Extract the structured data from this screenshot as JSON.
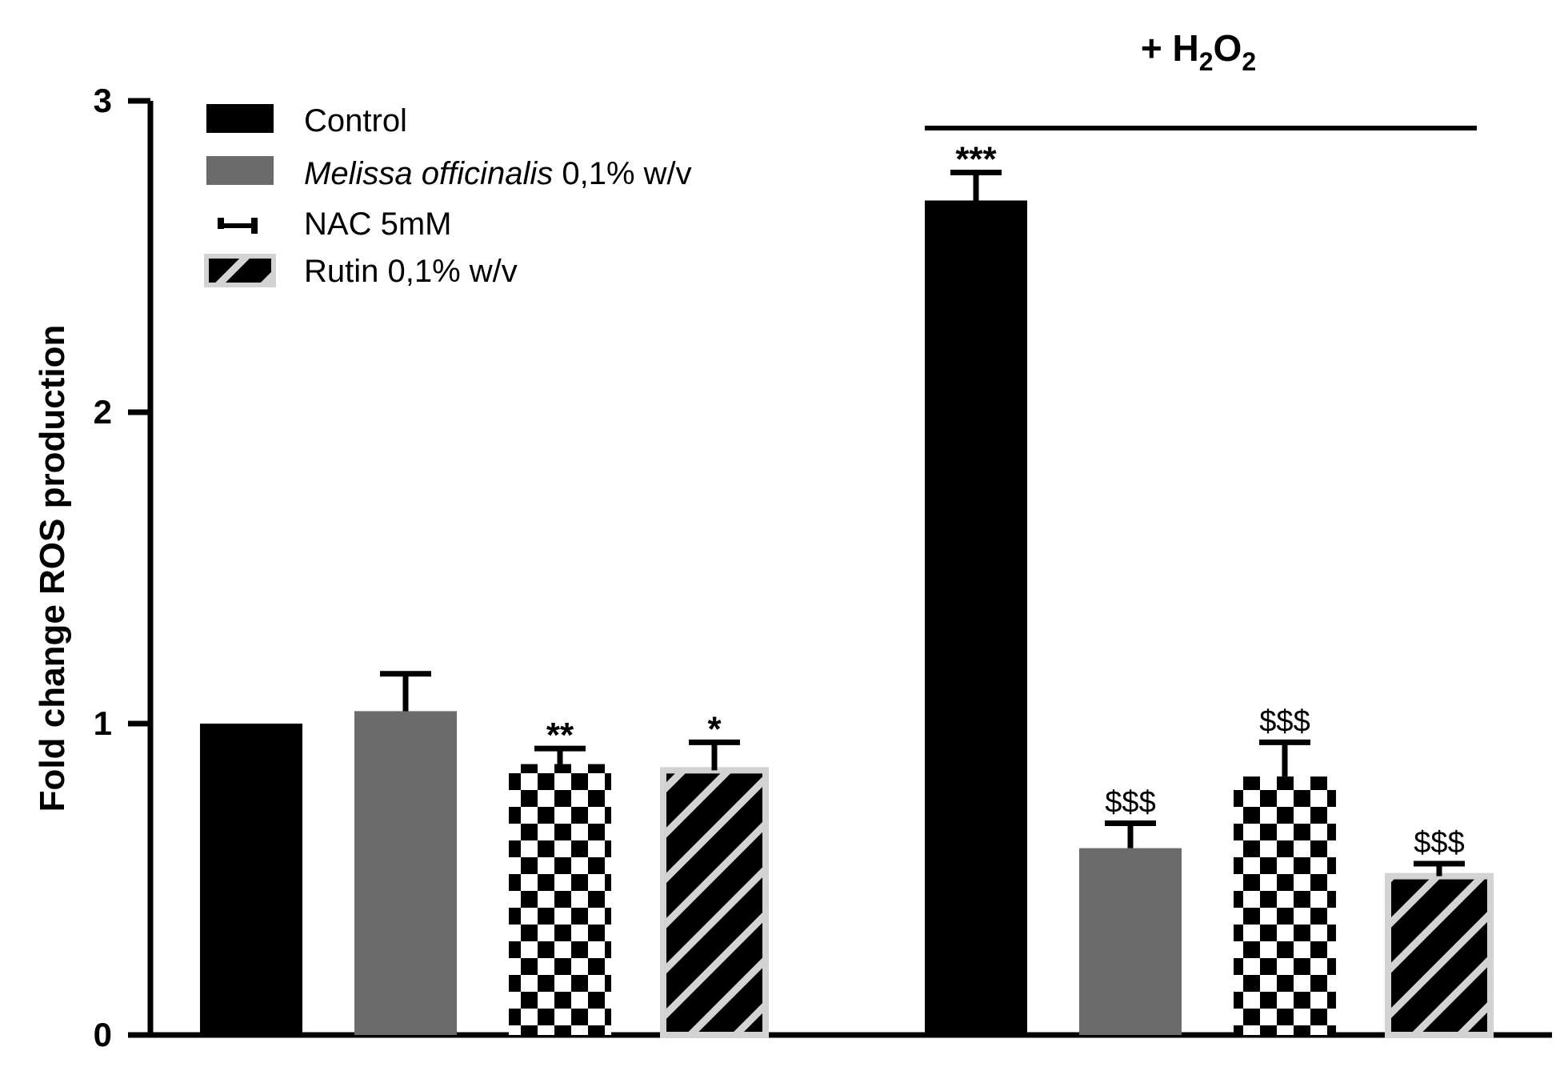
{
  "chart_data": {
    "type": "bar",
    "title": "",
    "xlabel": "",
    "ylabel": "Fold change ROS production",
    "ylim": [
      0,
      3
    ],
    "yticks": [
      "0",
      "1",
      "2",
      "3"
    ],
    "grid": false,
    "legend_position": "top-left",
    "group_annotation": {
      "prefix": "+ H",
      "sub1": "2",
      "mid": "O",
      "sub2": "2"
    },
    "series": [
      {
        "name": "Control",
        "name_italic": "",
        "name_rest": "Control",
        "fill": "solid-black",
        "values": [
          1.0,
          2.68
        ],
        "errors": [
          0.0,
          0.09
        ],
        "annotations": [
          "",
          "***"
        ]
      },
      {
        "name": "Melissa officinalis 0,1% w/v",
        "name_italic": "Melissa officinalis",
        "name_rest": " 0,1% w/v",
        "fill": "solid-gray",
        "values": [
          1.04,
          0.6
        ],
        "errors": [
          0.12,
          0.08
        ],
        "annotations": [
          "",
          "$$$"
        ]
      },
      {
        "name": "NAC 5mM",
        "name_italic": "",
        "name_rest": "NAC 5mM",
        "fill": "checkerboard",
        "values": [
          0.87,
          0.83
        ],
        "errors": [
          0.05,
          0.11
        ],
        "annotations": [
          "**",
          "$$$"
        ]
      },
      {
        "name": "Rutin 0,1% w/v",
        "name_italic": "",
        "name_rest": "Rutin 0,1% w/v",
        "fill": "diagonal-stripes",
        "values": [
          0.85,
          0.51
        ],
        "errors": [
          0.09,
          0.04
        ],
        "annotations": [
          "*",
          "$$$"
        ]
      }
    ],
    "colors": {
      "black": "#000000",
      "gray": "#6b6b6b",
      "stripe_bg": "#d3d3d3",
      "white": "#ffffff"
    }
  }
}
